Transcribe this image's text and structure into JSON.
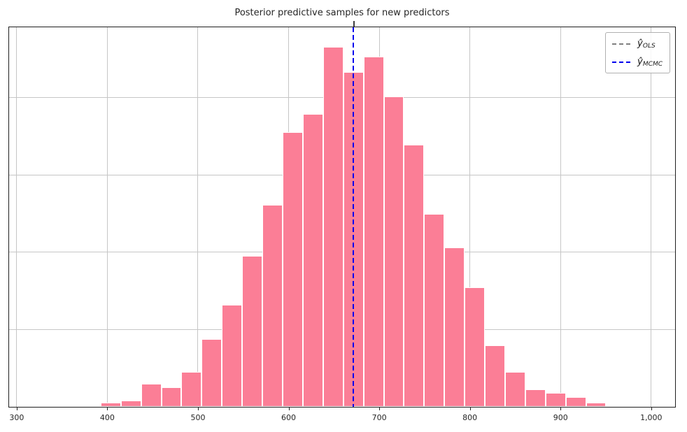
{
  "chart_data": {
    "type": "bar",
    "subtype": "histogram",
    "title": "Posterior predictive samples for new predictors",
    "xlabel": "",
    "ylabel": "",
    "grid": true,
    "xlim": [
      292,
      1026
    ],
    "ylim": [
      0,
      491
    ],
    "x_ticks": [
      {
        "value": 300,
        "label": "300"
      },
      {
        "value": 400,
        "label": "400"
      },
      {
        "value": 500,
        "label": "500"
      },
      {
        "value": 600,
        "label": "600"
      },
      {
        "value": 700,
        "label": "700"
      },
      {
        "value": 800,
        "label": "800"
      },
      {
        "value": 900,
        "label": "900"
      },
      {
        "value": 1000,
        "label": "1,000"
      }
    ],
    "y_gridlines": [
      100,
      200,
      300,
      400
    ],
    "bin_start": 393,
    "bin_width": 22.31,
    "counts": [
      5,
      8,
      30,
      25,
      45,
      88,
      132,
      196,
      262,
      356,
      380,
      467,
      434,
      454,
      402,
      340,
      250,
      207,
      155,
      80,
      45,
      23,
      18,
      13,
      5,
      2,
      2
    ],
    "bar_color": "#fb7e96",
    "bar_edge_color": "#ffffff",
    "grid_color": "#c6c6c6",
    "axis_color": "#1f1f1f",
    "vlines": [
      {
        "name": "y_hat_OLS",
        "value": 672,
        "color": "#7f7f7f",
        "style": "dashed"
      },
      {
        "name": "y_hat_MCMC",
        "value": 672,
        "color": "#0000ee",
        "style": "dashed"
      }
    ],
    "legend": {
      "position": "upper right",
      "items": [
        {
          "symbol": "ŷ",
          "sub": "OLS",
          "color": "#7f7f7f",
          "line_style": "dashed"
        },
        {
          "symbol": "ŷ",
          "sub": "MCMC",
          "color": "#0000ee",
          "line_style": "dashed"
        }
      ]
    }
  }
}
